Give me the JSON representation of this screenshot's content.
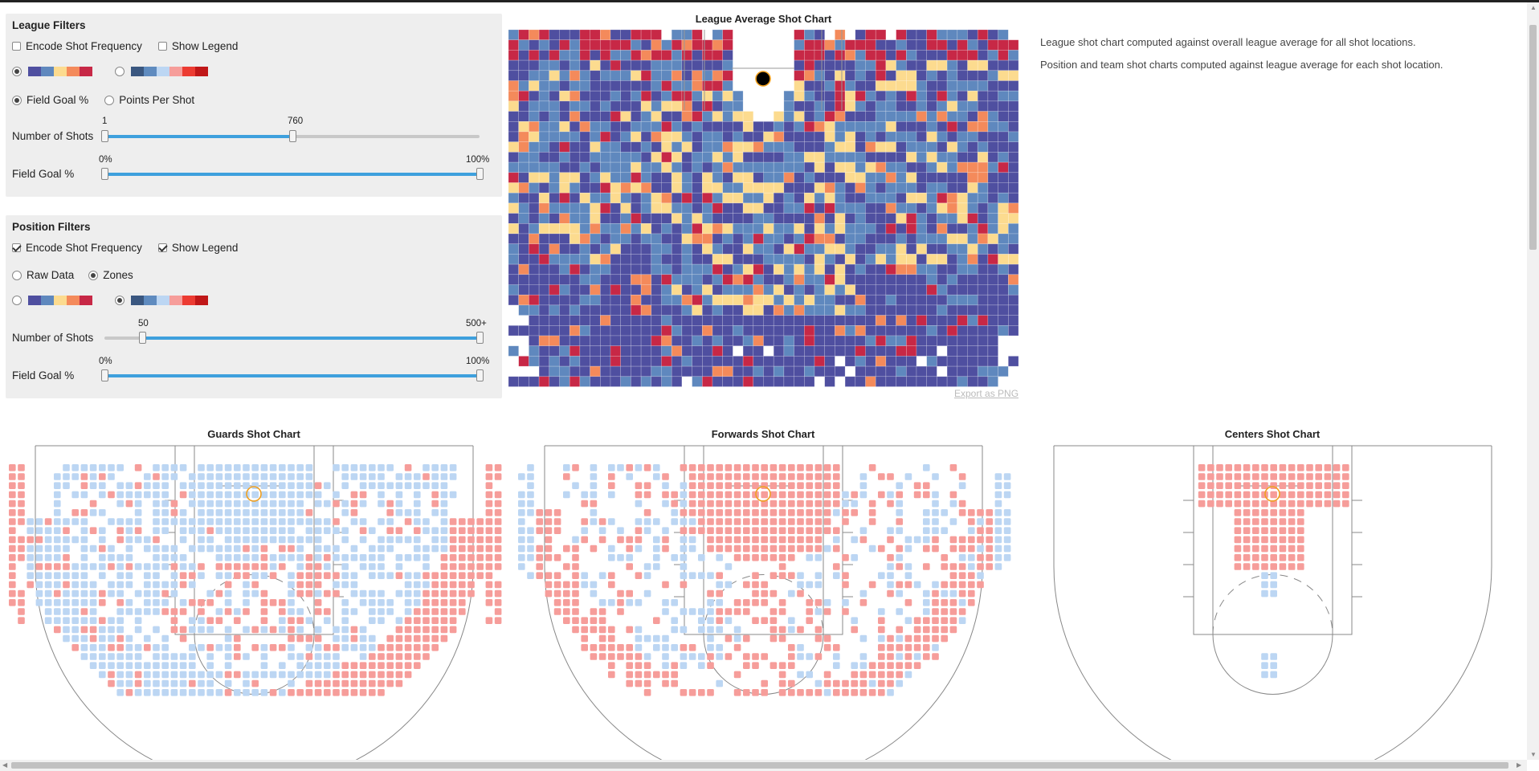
{
  "league_filters": {
    "title": "League Filters",
    "encode_label": "Encode Shot Frequency",
    "encode_checked": false,
    "legend_label": "Show Legend",
    "legend_checked": false,
    "palette_selected": 0,
    "metric_fg_label": "Field Goal %",
    "metric_pps_label": "Points Per Shot",
    "metric_selected": "fg",
    "shots_label": "Number of Shots",
    "shots_min_label": "1",
    "shots_max_label": "760",
    "shots_fraction": 0.5,
    "fg_label": "Field Goal %",
    "fg_min_label": "0%",
    "fg_max_label": "100%"
  },
  "position_filters": {
    "title": "Position Filters",
    "encode_label": "Encode Shot Frequency",
    "encode_checked": true,
    "legend_label": "Show Legend",
    "legend_checked": true,
    "raw_label": "Raw Data",
    "zones_label": "Zones",
    "mode_selected": "zones",
    "palette_selected": 1,
    "shots_label": "Number of Shots",
    "shots_min_label": "50",
    "shots_max_label": "500+",
    "shots_fraction": 0.1,
    "fg_label": "Field Goal %",
    "fg_min_label": "0%",
    "fg_max_label": "100%"
  },
  "palettes": {
    "diverging_a": [
      "#4f4fa0",
      "#5f88be",
      "#fcdb8f",
      "#f48a5b",
      "#c72846"
    ],
    "diverging_b": [
      "#3a5780",
      "#5f8bbf",
      "#bcd6f3",
      "#f69d9a",
      "#ec3b32",
      "#c01718"
    ]
  },
  "league_chart": {
    "title": "League Average Shot Chart",
    "export_label": "Export as PNG",
    "cell_colors": [
      "#4f4fa0",
      "#5f88be",
      "#fcdb8f",
      "#f48a5b",
      "#c72846"
    ]
  },
  "descriptions": {
    "line1": "League shot chart computed against overall league average for all shot locations.",
    "line2": "Position and team shot charts computed against league average for each shot location."
  },
  "position_charts": [
    {
      "title": "Guards Shot Chart"
    },
    {
      "title": "Forwards Shot Chart"
    },
    {
      "title": "Centers Shot Chart"
    }
  ],
  "zone_colors": {
    "above": "#f69d9a",
    "below": "#bcd6f3",
    "rim": "#f0a020"
  }
}
